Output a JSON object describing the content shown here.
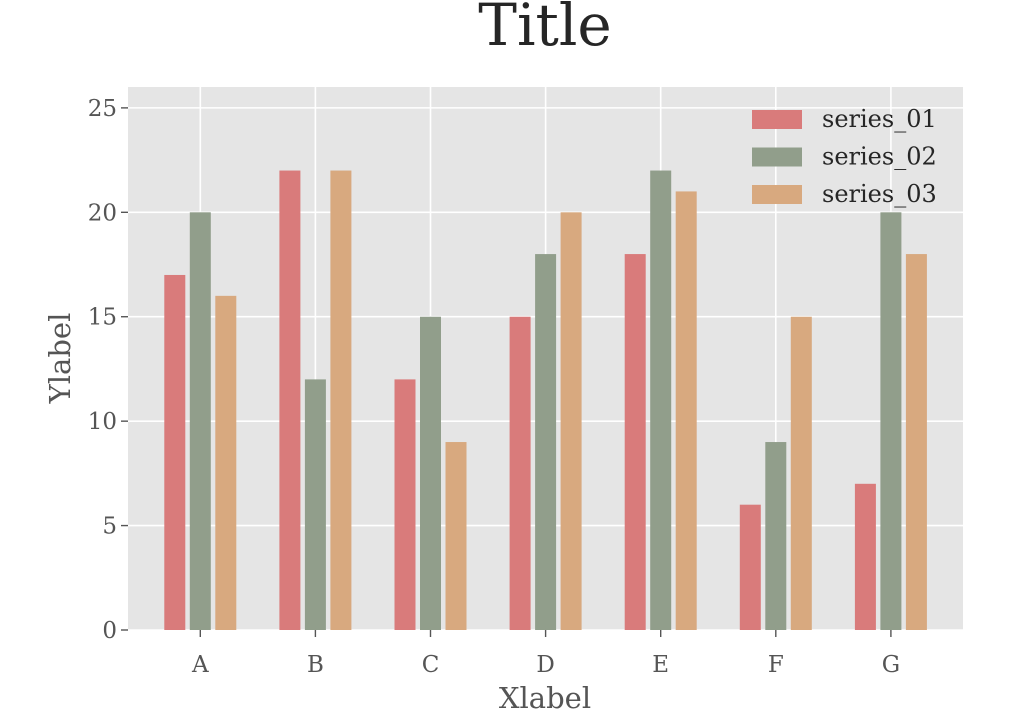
{
  "chart_data": {
    "type": "bar",
    "title": "Title",
    "xlabel": "Xlabel",
    "ylabel": "Ylabel",
    "categories": [
      "A",
      "B",
      "C",
      "D",
      "E",
      "F",
      "G"
    ],
    "series": [
      {
        "name": "series_01",
        "color": "#d97b7b",
        "values": [
          17,
          22,
          12,
          15,
          18,
          6,
          7
        ]
      },
      {
        "name": "series_02",
        "color": "#919e8b",
        "values": [
          20,
          12,
          15,
          18,
          22,
          9,
          20
        ]
      },
      {
        "name": "series_03",
        "color": "#d8a97f",
        "values": [
          16,
          22,
          9,
          20,
          21,
          15,
          18
        ]
      }
    ],
    "ylim": [
      0,
      26
    ],
    "yticks": [
      0,
      5,
      10,
      15,
      20,
      25
    ],
    "grid": true,
    "legend": "top-right",
    "background": "#e5e5e5"
  }
}
